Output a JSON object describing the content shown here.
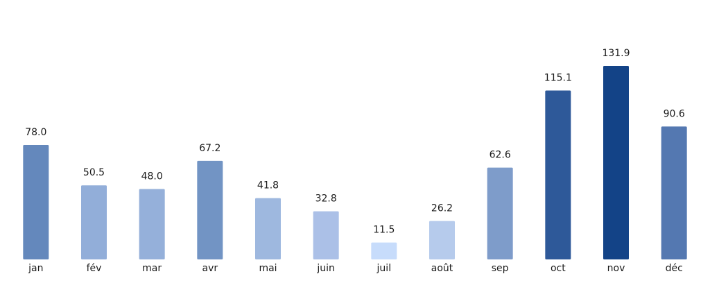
{
  "chart_data": {
    "type": "bar",
    "categories": [
      "jan",
      "fév",
      "mar",
      "avr",
      "mai",
      "juin",
      "juil",
      "août",
      "sep",
      "oct",
      "nov",
      "déc"
    ],
    "values": [
      78.0,
      50.5,
      48.0,
      67.2,
      41.8,
      32.8,
      11.5,
      26.2,
      62.6,
      115.1,
      131.9,
      90.6
    ],
    "value_labels": [
      "78.0",
      "50.5",
      "48.0",
      "67.2",
      "41.8",
      "32.8",
      "11.5",
      "26.2",
      "62.6",
      "115.1",
      "131.9",
      "90.6"
    ],
    "bar_colors": [
      "#6488bc",
      "#92aed9",
      "#95b0da",
      "#7294c4",
      "#9eb8df",
      "#abc0e7",
      "#c7dcfb",
      "#b6cbec",
      "#7e9cca",
      "#2e5999",
      "#134387",
      "#5478b1"
    ],
    "title": "",
    "xlabel": "",
    "ylabel": "",
    "ylim": [
      0,
      160
    ],
    "grid": false,
    "legend": "none"
  }
}
